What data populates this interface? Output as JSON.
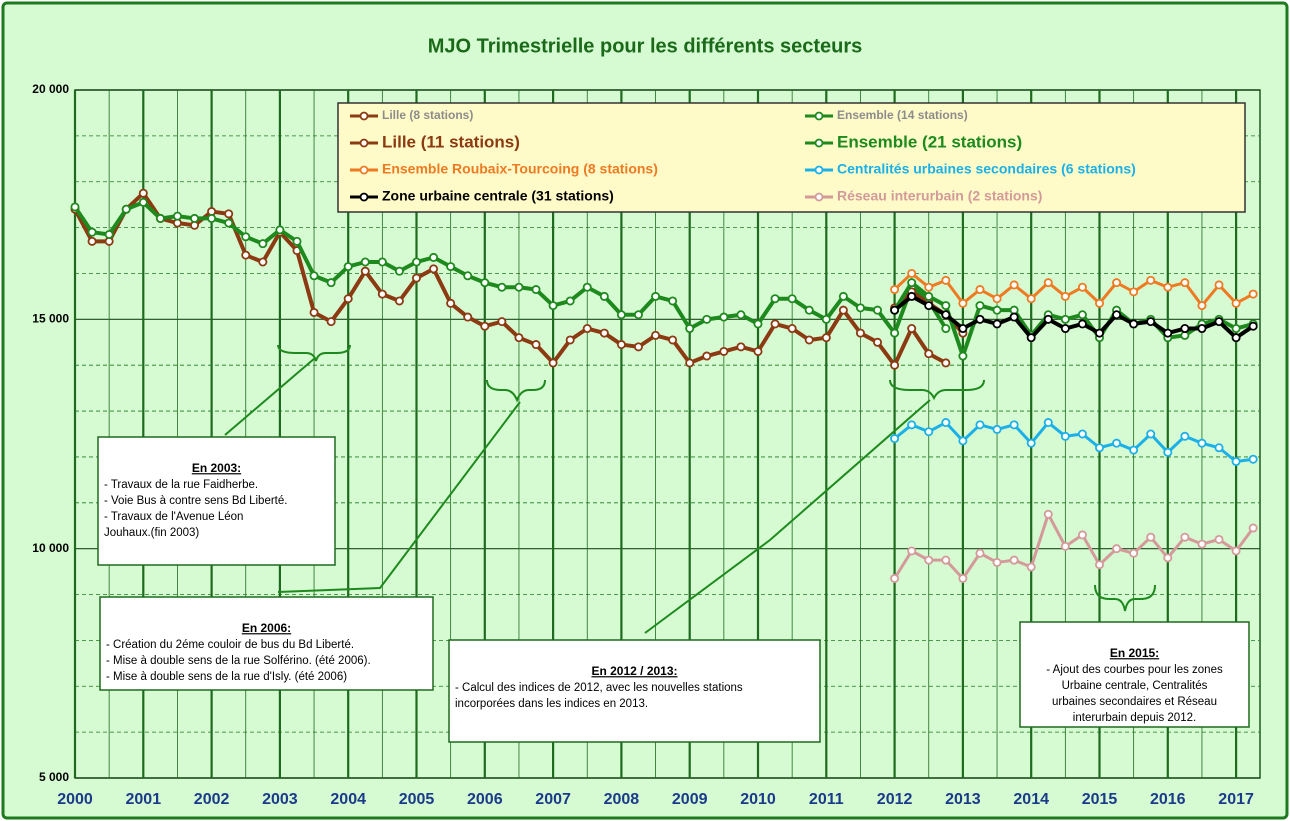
{
  "chart_data": {
    "type": "line",
    "title": "MJO Trimestrielle pour les différents secteurs",
    "xlim": [
      2000,
      2017.35
    ],
    "xticks": [
      2000,
      2001,
      2002,
      2003,
      2004,
      2005,
      2006,
      2007,
      2008,
      2009,
      2010,
      2011,
      2012,
      2013,
      2014,
      2015,
      2016,
      2017
    ],
    "ylim": [
      5000,
      20000
    ],
    "yticks": [
      {
        "value": 5000,
        "label": "5 000"
      },
      {
        "value": 10000,
        "label": "10 000"
      },
      {
        "value": 15000,
        "label": "15 000"
      },
      {
        "value": 20000,
        "label": "20 000"
      }
    ],
    "minor_grid_y": [
      6000,
      7000,
      8000,
      9000,
      11000,
      12000,
      13000,
      14000,
      16000,
      17000,
      18000,
      19000
    ],
    "grid": true,
    "series": [
      {
        "name": "Lille (8 stations)",
        "color": "#8b3a12",
        "label_color": "#8c8c8c",
        "x": [
          2000,
          2000.25,
          2000.5,
          2000.75,
          2001,
          2001.25,
          2001.5,
          2001.75,
          2002,
          2002.25,
          2002.5,
          2002.75,
          2003,
          2003.25,
          2003.5,
          2003.75,
          2004,
          2004.25,
          2004.5,
          2004.75,
          2005,
          2005.25,
          2005.5,
          2005.75,
          2006,
          2006.25,
          2006.5,
          2006.75,
          2007,
          2007.25,
          2007.5,
          2007.75,
          2008,
          2008.25,
          2008.5,
          2008.75,
          2009,
          2009.25,
          2009.5,
          2009.75,
          2010,
          2010.25,
          2010.5,
          2010.75,
          2011,
          2011.25,
          2011.5,
          2011.75,
          2012,
          2012.25,
          2012.5,
          2012.75
        ],
        "values": [
          17400,
          16700,
          16700,
          17400,
          17750,
          17200,
          17100,
          17050,
          17350,
          17300,
          16400,
          16250,
          16900,
          16500,
          15150,
          14950,
          15450,
          16050,
          15550,
          15400,
          15900,
          16100,
          15350,
          15050,
          14850,
          14950,
          14600,
          14450,
          14050,
          14550,
          14800,
          14700,
          14450,
          14400,
          14650,
          14550,
          14050,
          14200,
          14300,
          14400,
          14300,
          14900,
          14800,
          14550,
          14600,
          15200,
          14700,
          14500,
          14000,
          14800,
          14250,
          14050
        ]
      },
      {
        "name": "Ensemble (14 stations)",
        "color": "#1e8a1e",
        "label_color": "#8c8c8c",
        "x": [
          2000,
          2000.25,
          2000.5,
          2000.75,
          2001,
          2001.25,
          2001.5,
          2001.75,
          2002,
          2002.25,
          2002.5,
          2002.75,
          2003,
          2003.25,
          2003.5,
          2003.75,
          2004,
          2004.25,
          2004.5,
          2004.75,
          2005,
          2005.25,
          2005.5,
          2005.75,
          2006,
          2006.25,
          2006.5,
          2006.75,
          2007,
          2007.25,
          2007.5,
          2007.75,
          2008,
          2008.25,
          2008.5,
          2008.75,
          2009,
          2009.25,
          2009.5,
          2009.75,
          2010,
          2010.25,
          2010.5,
          2010.75,
          2011,
          2011.25,
          2011.5,
          2011.75,
          2012,
          2012.25,
          2012.5,
          2012.75
        ],
        "values": [
          17450,
          16900,
          16850,
          17400,
          17550,
          17200,
          17250,
          17200,
          17200,
          17100,
          16800,
          16650,
          16950,
          16700,
          15950,
          15800,
          16150,
          16250,
          16250,
          16050,
          16250,
          16350,
          16150,
          15950,
          15800,
          15700,
          15700,
          15650,
          15300,
          15400,
          15700,
          15500,
          15100,
          15100,
          15500,
          15400,
          14800,
          15000,
          15050,
          15100,
          14900,
          15450,
          15450,
          15200,
          15000,
          15500,
          15250,
          15200,
          14700,
          15700,
          15400,
          14800
        ]
      },
      {
        "name": "Lille (11 stations)",
        "color": "#8b3a12",
        "label_color": "#8b3a12",
        "x": [
          2012,
          2012.25,
          2012.5,
          2012.75,
          2013
        ],
        "values": [
          15250,
          15600,
          15350,
          15100,
          14700
        ]
      },
      {
        "name": "Ensemble (21 stations)",
        "color": "#1e8a1e",
        "label_color": "#1e8a1e",
        "x": [
          2012,
          2012.25,
          2012.5,
          2012.75,
          2013,
          2013.25,
          2013.5,
          2013.75,
          2014,
          2014.25,
          2014.5,
          2014.75,
          2015,
          2015.25,
          2015.5,
          2015.75,
          2016,
          2016.25,
          2016.5,
          2016.75,
          2017,
          2017.25
        ],
        "values": [
          15200,
          15800,
          15500,
          15300,
          14200,
          15300,
          15200,
          15200,
          14650,
          15100,
          15000,
          15100,
          14600,
          15200,
          14900,
          15000,
          14600,
          14650,
          14900,
          15000,
          14800,
          14900
        ]
      },
      {
        "name": "Ensemble Roubaix-Tourcoing (8 stations)",
        "color": "#ee7a22",
        "label_color": "#ee7a22",
        "x": [
          2012,
          2012.25,
          2012.5,
          2012.75,
          2013,
          2013.25,
          2013.5,
          2013.75,
          2014,
          2014.25,
          2014.5,
          2014.75,
          2015,
          2015.25,
          2015.5,
          2015.75,
          2016,
          2016.25,
          2016.5,
          2016.75,
          2017,
          2017.25
        ],
        "values": [
          15650,
          16000,
          15700,
          15850,
          15350,
          15650,
          15450,
          15750,
          15450,
          15800,
          15500,
          15700,
          15350,
          15800,
          15600,
          15850,
          15700,
          15800,
          15300,
          15750,
          15350,
          15550
        ]
      },
      {
        "name": "Centralités urbaines secondaires (6 stations)",
        "color": "#1cb0e8",
        "label_color": "#1cb0e8",
        "x": [
          2012,
          2012.25,
          2012.5,
          2012.75,
          2013,
          2013.25,
          2013.5,
          2013.75,
          2014,
          2014.25,
          2014.5,
          2014.75,
          2015,
          2015.25,
          2015.5,
          2015.75,
          2016,
          2016.25,
          2016.5,
          2016.75,
          2017,
          2017.25
        ],
        "values": [
          12400,
          12700,
          12550,
          12750,
          12350,
          12700,
          12600,
          12700,
          12300,
          12750,
          12450,
          12500,
          12200,
          12300,
          12150,
          12500,
          12100,
          12450,
          12300,
          12200,
          11900,
          11950
        ]
      },
      {
        "name": "Zone urbaine centrale (31 stations)",
        "color": "#000000",
        "label_color": "#000000",
        "x": [
          2012,
          2012.25,
          2012.5,
          2012.75,
          2013,
          2013.25,
          2013.5,
          2013.75,
          2014,
          2014.25,
          2014.5,
          2014.75,
          2015,
          2015.25,
          2015.5,
          2015.75,
          2016,
          2016.25,
          2016.5,
          2016.75,
          2017,
          2017.25
        ],
        "values": [
          15200,
          15500,
          15300,
          15100,
          14800,
          15000,
          14900,
          15050,
          14600,
          15000,
          14800,
          14900,
          14700,
          15100,
          14900,
          14950,
          14700,
          14800,
          14800,
          14950,
          14600,
          14850
        ]
      },
      {
        "name": "Réseau interurbain (2 stations)",
        "color": "#d49a9a",
        "label_color": "#d49a9a",
        "x": [
          2012,
          2012.25,
          2012.5,
          2012.75,
          2013,
          2013.25,
          2013.5,
          2013.75,
          2014,
          2014.25,
          2014.5,
          2014.75,
          2015,
          2015.25,
          2015.5,
          2015.75,
          2016,
          2016.25,
          2016.5,
          2016.75,
          2017,
          2017.25
        ],
        "values": [
          9350,
          9950,
          9750,
          9750,
          9350,
          9900,
          9700,
          9750,
          9600,
          10750,
          10050,
          10300,
          9650,
          10000,
          9900,
          10250,
          9800,
          10250,
          10100,
          10200,
          9950,
          10450
        ]
      }
    ],
    "annotations": [
      {
        "title": "En 2003:",
        "lines": [
          "- Travaux  de la rue Faidherbe.",
          "- Voie Bus à contre sens Bd Liberté.",
          "- Travaux  de l'Avenue Léon",
          "Jouhaux.(fin 2003)"
        ]
      },
      {
        "title": "En 2006:",
        "lines": [
          "- Création du 2éme couloir de bus du Bd Liberté.",
          "- Mise à double sens de la rue Solférino. (été 2006).",
          "- Mise à double sens de la rue d'Isly. (été 2006)"
        ]
      },
      {
        "title": "En 2012 / 2013:",
        "lines": [
          "- Calcul des indices de 2012, avec les nouvelles stations",
          "incorporées dans les indices en 2013."
        ]
      },
      {
        "title": "En 2015:",
        "lines": [
          "- Ajout des courbes pour les zones",
          "Urbaine centrale, Centralités",
          "urbaines secondaires et Réseau",
          "interurbain depuis 2012."
        ]
      }
    ]
  }
}
